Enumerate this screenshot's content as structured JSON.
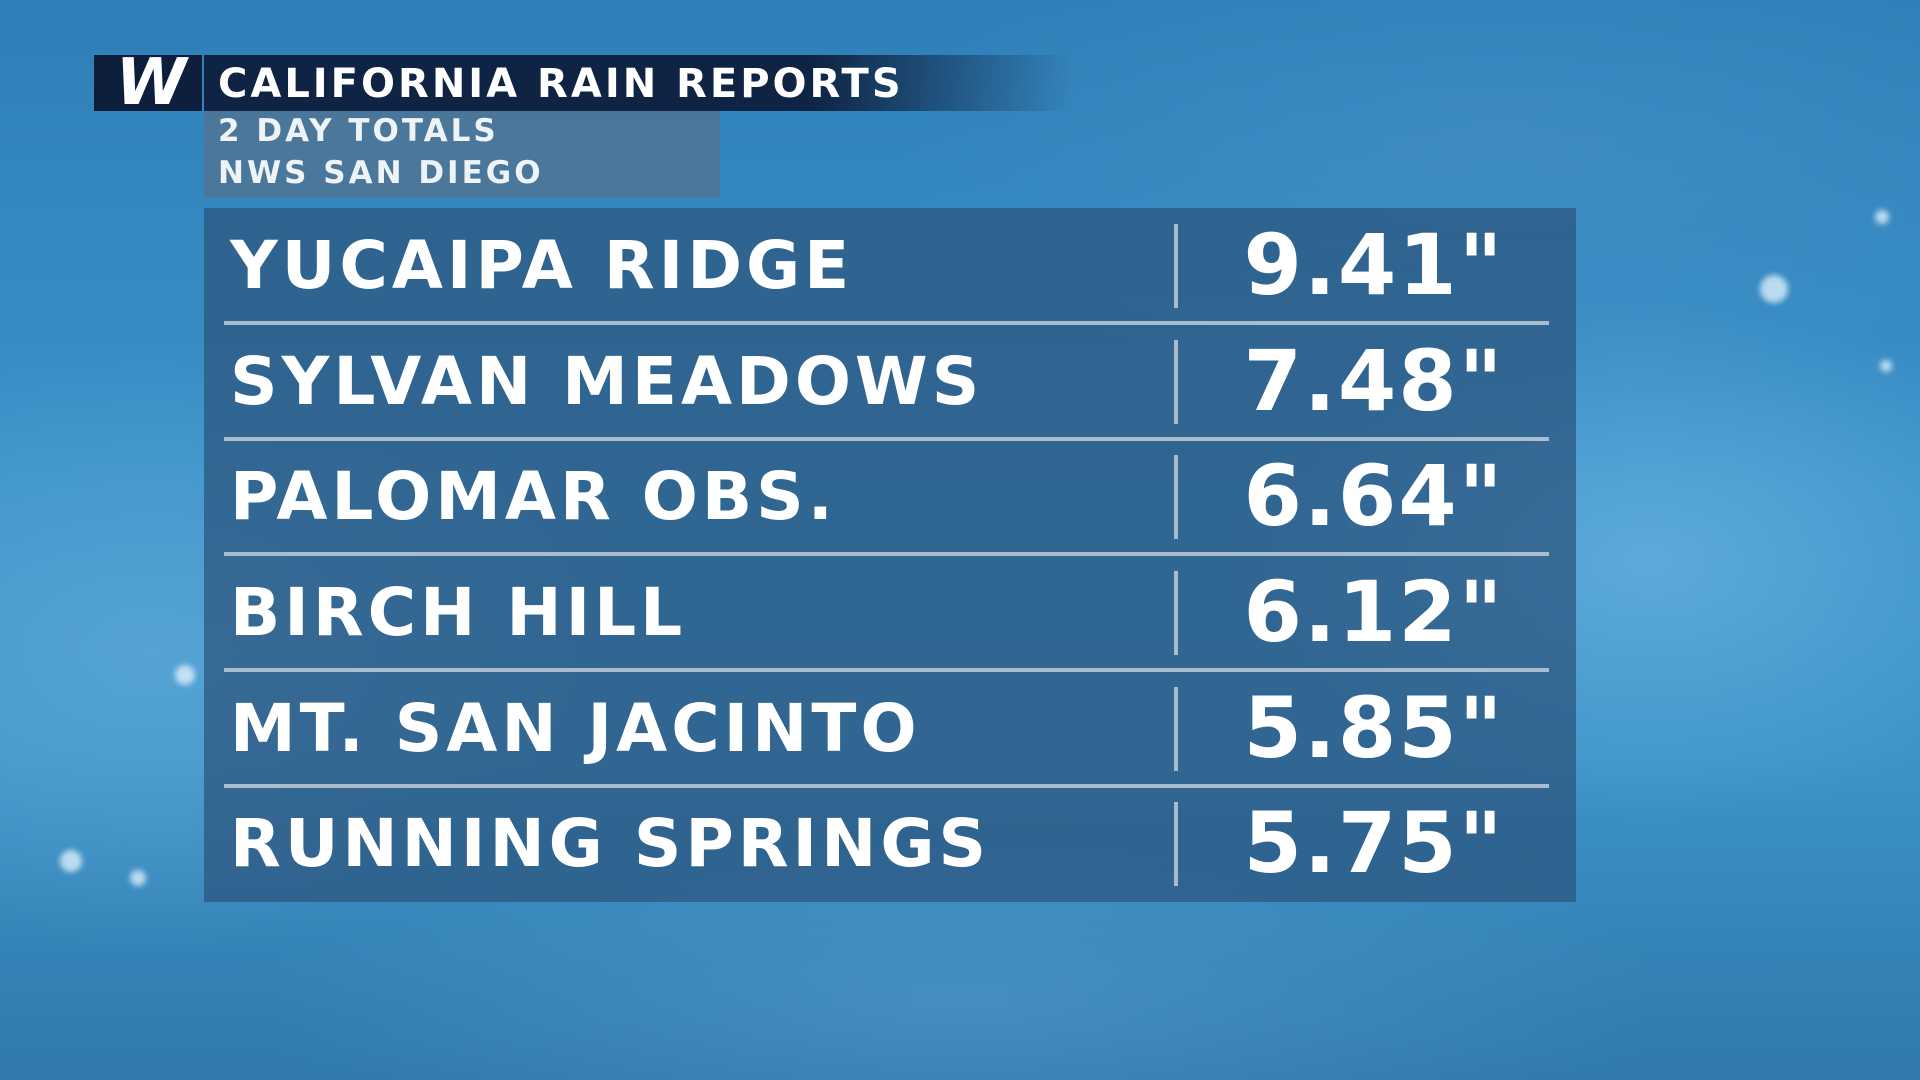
{
  "header": {
    "logo": "W",
    "title": "CALIFORNIA RAIN REPORTS",
    "subtitle": [
      "2 DAY TOTALS",
      "NWS SAN DIEGO"
    ]
  },
  "table": {
    "rows": [
      [
        "YUCAIPA RIDGE",
        "9.41\""
      ],
      [
        "SYLVAN MEADOWS",
        "7.48\""
      ],
      [
        "PALOMAR OBS.",
        "6.64\""
      ],
      [
        "BIRCH HILL",
        "6.12\""
      ],
      [
        "MT. SAN JACINTO",
        "5.85\""
      ],
      [
        "RUNNING SPRINGS",
        "5.75\""
      ]
    ]
  }
}
